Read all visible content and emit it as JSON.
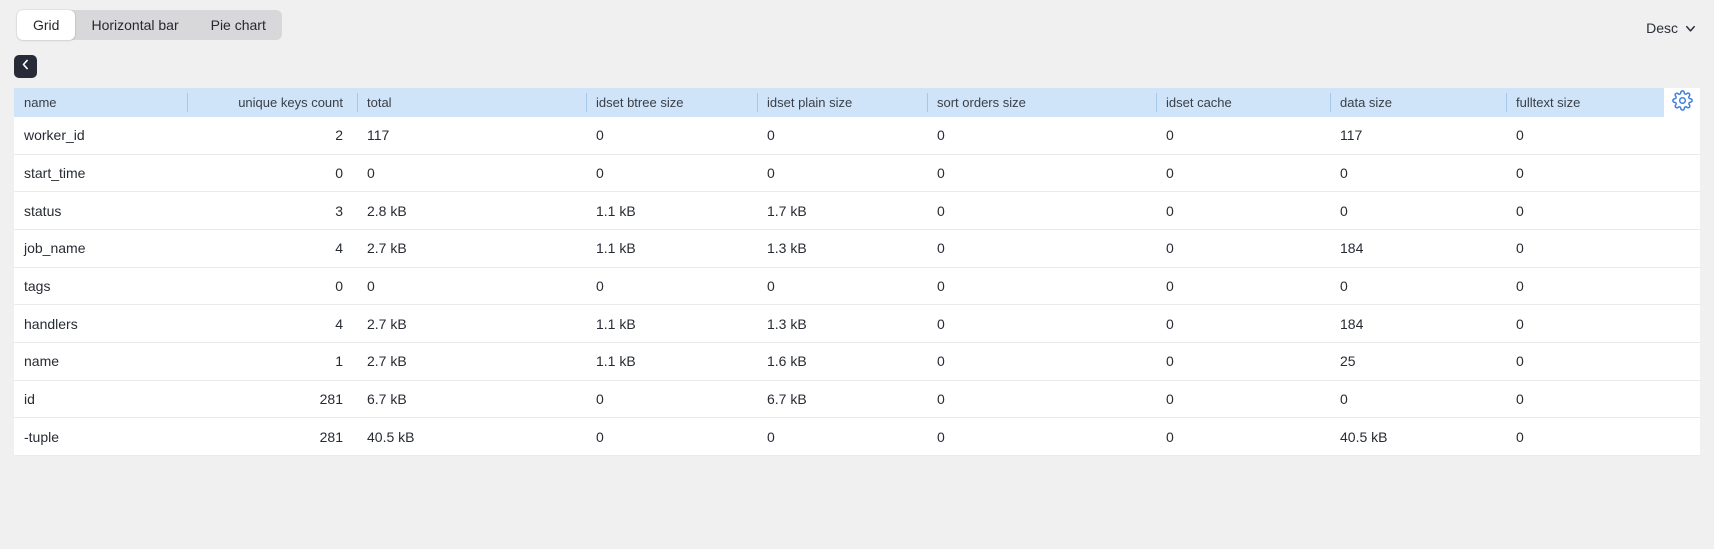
{
  "view_tabs": {
    "items": [
      {
        "label": "Grid",
        "active": true
      },
      {
        "label": "Horizontal bar",
        "active": false
      },
      {
        "label": "Pie chart",
        "active": false
      }
    ]
  },
  "sort_dropdown": {
    "value": "Desc",
    "icon": "chevron-down-icon"
  },
  "back_button": {
    "icon": "chevron-left-icon"
  },
  "settings_button": {
    "icon": "gear-icon"
  },
  "colors": {
    "page_background": "#f0f0f1",
    "header_blue": "#cfe4f8",
    "header_separator": "#a5c8ea",
    "accent_blue": "#3d7ede",
    "dark_button": "#262b37",
    "row_divider": "#eaeaec"
  },
  "table": {
    "columns": [
      "name",
      "unique keys count",
      "total",
      "idset btree size",
      "idset plain size",
      "sort orders size",
      "idset cache",
      "data size",
      "fulltext size"
    ],
    "rows": [
      {
        "cells": [
          "worker_id",
          "2",
          "117",
          "0",
          "0",
          "0",
          "0",
          "117",
          "0"
        ]
      },
      {
        "cells": [
          "start_time",
          "0",
          "0",
          "0",
          "0",
          "0",
          "0",
          "0",
          "0"
        ]
      },
      {
        "cells": [
          "status",
          "3",
          "2.8 kB",
          "1.1 kB",
          "1.7 kB",
          "0",
          "0",
          "0",
          "0"
        ]
      },
      {
        "cells": [
          "job_name",
          "4",
          "2.7 kB",
          "1.1 kB",
          "1.3 kB",
          "0",
          "0",
          "184",
          "0"
        ]
      },
      {
        "cells": [
          "tags",
          "0",
          "0",
          "0",
          "0",
          "0",
          "0",
          "0",
          "0"
        ]
      },
      {
        "cells": [
          "handlers",
          "4",
          "2.7 kB",
          "1.1 kB",
          "1.3 kB",
          "0",
          "0",
          "184",
          "0"
        ]
      },
      {
        "cells": [
          "name",
          "1",
          "2.7 kB",
          "1.1 kB",
          "1.6 kB",
          "0",
          "0",
          "25",
          "0"
        ]
      },
      {
        "cells": [
          "id",
          "281",
          "6.7 kB",
          "0",
          "6.7 kB",
          "0",
          "0",
          "0",
          "0"
        ]
      },
      {
        "cells": [
          "-tuple",
          "281",
          "40.5 kB",
          "0",
          "0",
          "0",
          "0",
          "40.5 kB",
          "0"
        ]
      }
    ]
  }
}
